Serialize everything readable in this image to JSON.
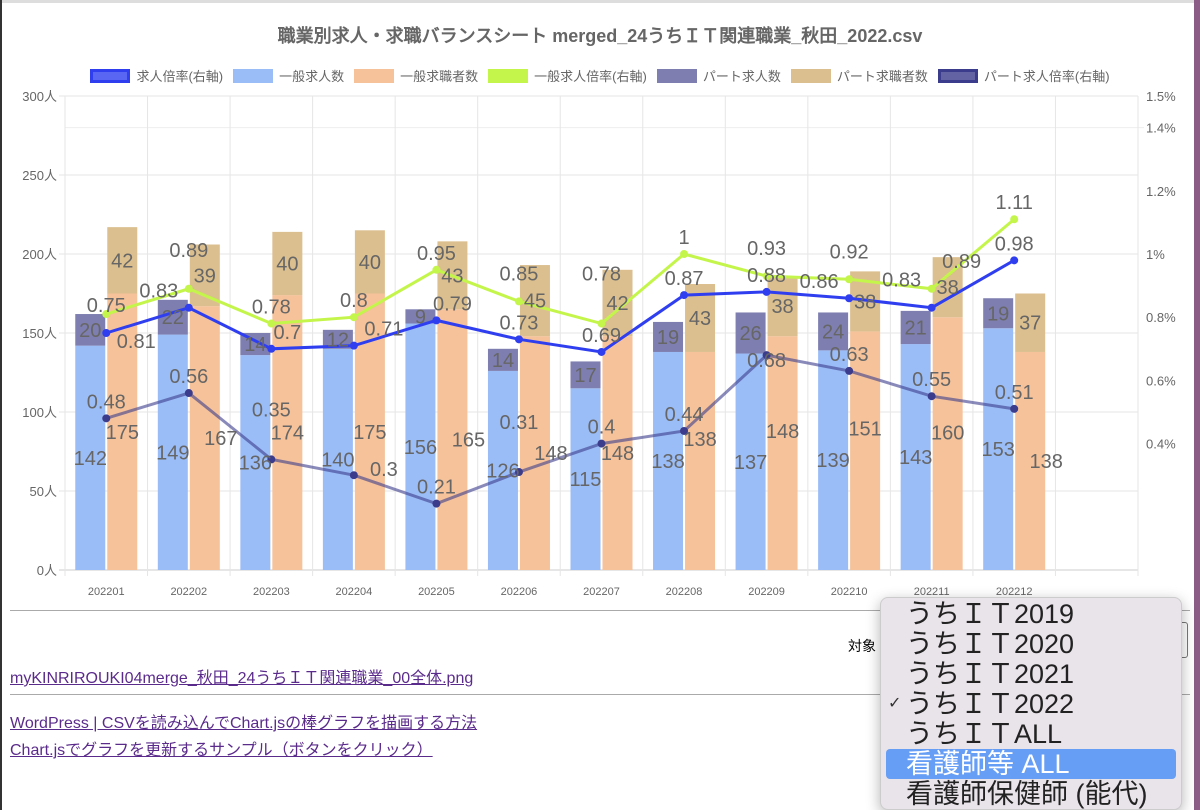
{
  "chart_data": {
    "type": "bar",
    "title": "職業別求人・求職バランスシート merged_24うちＩＴ関連職業_秋田_2022.csv",
    "categories": [
      "202201",
      "202202",
      "202203",
      "202204",
      "202205",
      "202206",
      "202207",
      "202208",
      "202209",
      "202210",
      "202211",
      "202212"
    ],
    "left_axis": {
      "min": 0,
      "max": 300,
      "ticks": [
        "0人",
        "50人",
        "100人",
        "150人",
        "200人",
        "250人",
        "300人"
      ]
    },
    "right_axis": {
      "min": 0,
      "max": 1.5,
      "ticks": [
        "0.4%",
        "0.6%",
        "0.8%",
        "1%",
        "1.2%",
        "1.4%",
        "1.5%"
      ]
    },
    "grid": true,
    "legend_position": "top",
    "series": [
      {
        "name": "求人倍率(右軸)",
        "kind": "line",
        "axis": "right",
        "color": "#2f3ff0",
        "values": [
          0.75,
          0.83,
          0.7,
          0.71,
          0.79,
          0.73,
          0.69,
          0.87,
          0.88,
          0.86,
          0.83,
          0.98
        ]
      },
      {
        "name": "一般求人数",
        "kind": "bar",
        "stack": "offer",
        "axis": "left",
        "color": "#9bbdf7",
        "values": [
          142,
          149,
          136,
          140,
          156,
          126,
          115,
          138,
          137,
          139,
          143,
          153
        ]
      },
      {
        "name": "一般求職者数",
        "kind": "bar",
        "stack": "seek",
        "axis": "left",
        "color": "#f5c29a",
        "values": [
          175,
          167,
          174,
          175,
          165,
          148,
          148,
          138,
          148,
          151,
          160,
          138
        ]
      },
      {
        "name": "一般求人倍率(右軸)",
        "kind": "line",
        "axis": "right",
        "color": "#c4f54a",
        "values": [
          0.81,
          0.89,
          0.78,
          0.8,
          0.95,
          0.85,
          0.78,
          1,
          0.93,
          0.92,
          0.89,
          1.11
        ]
      },
      {
        "name": "パート求人数",
        "kind": "bar",
        "stack": "offer",
        "axis": "left",
        "color": "#7e7eb0",
        "values": [
          20,
          22,
          14,
          12,
          9,
          14,
          17,
          19,
          26,
          24,
          21,
          19
        ]
      },
      {
        "name": "パート求職者数",
        "kind": "bar",
        "stack": "seek",
        "axis": "left",
        "color": "#dbbf8f",
        "values": [
          42,
          39,
          40,
          40,
          43,
          45,
          42,
          43,
          38,
          38,
          38,
          37
        ]
      },
      {
        "name": "パート求人倍率(右軸)",
        "kind": "line",
        "axis": "right",
        "color": "#3c3c8c",
        "values": [
          0.48,
          0.56,
          0.35,
          0.3,
          0.21,
          0.31,
          0.4,
          0.44,
          0.68,
          0.63,
          0.55,
          0.51
        ]
      }
    ]
  },
  "links": {
    "image": "myKINRIROUKI04merge_秋田_24うちＩＴ関連職業_00全体.png",
    "wordpress": "WordPress | CSVを読み込んでChart.jsの棒グラフを描画する方法",
    "update_sample": "Chart.jsでグラフを更新するサンプル（ボタンをクリック）"
  },
  "select": {
    "label": "対象",
    "options": [
      "うちＩＴ2019",
      "うちＩＴ2020",
      "うちＩＴ2021",
      "うちＩＴ2022",
      "うちＩＴALL",
      "看護師等 ALL",
      "看護師保健師 (能代)"
    ],
    "checked": "うちＩＴ2022",
    "highlighted": "看護師等 ALL",
    "check_mark": "✓"
  }
}
